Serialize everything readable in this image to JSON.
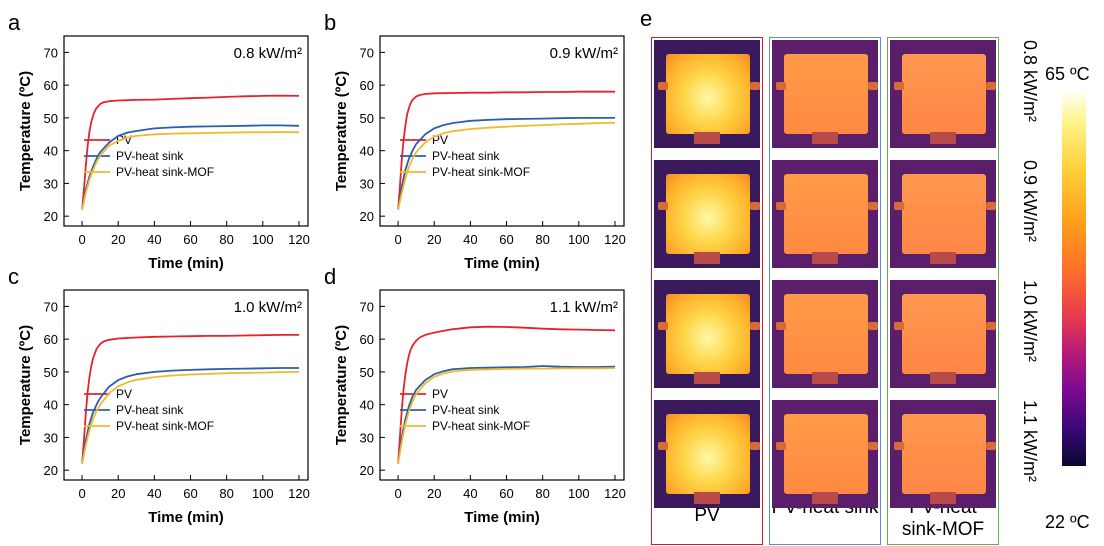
{
  "chart_data": [
    {
      "panel": "a",
      "type": "line",
      "annotation": "0.8 kW/m²",
      "xlabel": "Time (min)",
      "ylabel": "Temperature (ºC)",
      "xlim": [
        -10,
        125
      ],
      "ylim": [
        17,
        75
      ],
      "xticks": [
        0,
        20,
        40,
        60,
        80,
        100,
        120
      ],
      "yticks": [
        20,
        30,
        40,
        50,
        60,
        70
      ],
      "legend_position": "center-left",
      "series": [
        {
          "name": "PV",
          "color": "#e8222a",
          "x": [
            0,
            1,
            2,
            3,
            4,
            5,
            6,
            7,
            8,
            10,
            12,
            15,
            20,
            30,
            40,
            50,
            60,
            70,
            80,
            90,
            100,
            110,
            120
          ],
          "y": [
            22,
            28,
            35,
            41,
            45.5,
            48.5,
            50.5,
            52,
            53,
            54.2,
            54.8,
            55.1,
            55.3,
            55.5,
            55.6,
            55.8,
            56,
            56.2,
            56.4,
            56.6,
            56.7,
            56.8,
            56.7
          ]
        },
        {
          "name": "PV-heat sink",
          "color": "#2b5fa8",
          "x": [
            0,
            2,
            4,
            6,
            8,
            10,
            15,
            20,
            25,
            30,
            40,
            50,
            60,
            70,
            80,
            90,
            100,
            110,
            120
          ],
          "y": [
            22,
            28,
            32,
            35,
            37.5,
            39.5,
            42.5,
            44.5,
            45.5,
            46,
            46.8,
            47.1,
            47.3,
            47.4,
            47.5,
            47.6,
            47.7,
            47.7,
            47.6
          ]
        },
        {
          "name": "PV-heat sink-MOF",
          "color": "#f2b82e",
          "x": [
            0,
            2,
            4,
            6,
            8,
            10,
            15,
            20,
            25,
            30,
            40,
            50,
            60,
            70,
            80,
            90,
            100,
            110,
            120
          ],
          "y": [
            22,
            27,
            31,
            34,
            36.5,
            38.5,
            41.5,
            43,
            44,
            44.5,
            45,
            45.2,
            45.3,
            45.4,
            45.5,
            45.6,
            45.6,
            45.7,
            45.6
          ]
        }
      ]
    },
    {
      "panel": "b",
      "type": "line",
      "annotation": "0.9 kW/m²",
      "xlabel": "Time (min)",
      "ylabel": "Temperature (ºC)",
      "xlim": [
        -10,
        125
      ],
      "ylim": [
        17,
        75
      ],
      "xticks": [
        0,
        20,
        40,
        60,
        80,
        100,
        120
      ],
      "yticks": [
        20,
        30,
        40,
        50,
        60,
        70
      ],
      "legend_position": "center-left",
      "series": [
        {
          "name": "PV",
          "color": "#e8222a",
          "x": [
            0,
            1,
            2,
            3,
            4,
            5,
            6,
            7,
            8,
            10,
            12,
            15,
            20,
            30,
            40,
            50,
            60,
            70,
            80,
            90,
            100,
            110,
            120
          ],
          "y": [
            22,
            29,
            37,
            43,
            47.5,
            51,
            53,
            54.5,
            55.5,
            56.5,
            57,
            57.3,
            57.5,
            57.6,
            57.7,
            57.7,
            57.8,
            57.8,
            57.9,
            57.9,
            58,
            58,
            58
          ]
        },
        {
          "name": "PV-heat sink",
          "color": "#2b5fa8",
          "x": [
            0,
            2,
            4,
            6,
            8,
            10,
            15,
            20,
            25,
            30,
            40,
            50,
            60,
            70,
            80,
            90,
            100,
            110,
            120
          ],
          "y": [
            22,
            29,
            34,
            37.5,
            40,
            42,
            45,
            46.8,
            47.8,
            48.4,
            49.1,
            49.4,
            49.6,
            49.7,
            49.8,
            49.9,
            50,
            50,
            50
          ]
        },
        {
          "name": "PV-heat sink-MOF",
          "color": "#f2b82e",
          "x": [
            0,
            2,
            4,
            6,
            8,
            10,
            15,
            20,
            25,
            30,
            40,
            50,
            60,
            70,
            80,
            90,
            100,
            110,
            120
          ],
          "y": [
            22,
            27,
            31.5,
            35,
            37.5,
            39.5,
            42.5,
            44.3,
            45.3,
            45.9,
            46.6,
            47,
            47.3,
            47.6,
            47.8,
            48,
            48.2,
            48.4,
            48.5
          ]
        }
      ]
    },
    {
      "panel": "c",
      "type": "line",
      "annotation": "1.0 kW/m²",
      "xlabel": "Time (min)",
      "ylabel": "Temperature (ºC)",
      "xlim": [
        -10,
        125
      ],
      "ylim": [
        17,
        75
      ],
      "xticks": [
        0,
        20,
        40,
        60,
        80,
        100,
        120
      ],
      "yticks": [
        20,
        30,
        40,
        50,
        60,
        70
      ],
      "legend_position": "center-left",
      "series": [
        {
          "name": "PV",
          "color": "#e8222a",
          "x": [
            0,
            1,
            2,
            3,
            4,
            5,
            6,
            7,
            8,
            10,
            12,
            15,
            20,
            30,
            40,
            50,
            60,
            70,
            80,
            90,
            100,
            110,
            120
          ],
          "y": [
            22,
            29,
            37,
            43.5,
            48,
            51.5,
            54,
            55.5,
            57,
            58.5,
            59.3,
            59.8,
            60.2,
            60.5,
            60.7,
            60.8,
            60.9,
            61,
            61,
            61.1,
            61.2,
            61.3,
            61.3
          ]
        },
        {
          "name": "PV-heat sink",
          "color": "#2b5fa8",
          "x": [
            0,
            2,
            4,
            6,
            8,
            10,
            15,
            20,
            25,
            30,
            40,
            50,
            60,
            70,
            80,
            90,
            100,
            110,
            120
          ],
          "y": [
            22,
            29,
            34,
            37.5,
            40,
            42,
            45.5,
            47.5,
            48.6,
            49.3,
            50,
            50.4,
            50.6,
            50.8,
            50.9,
            51,
            51.1,
            51.2,
            51.2
          ]
        },
        {
          "name": "PV-heat sink-MOF",
          "color": "#f2b82e",
          "x": [
            0,
            2,
            4,
            6,
            8,
            10,
            15,
            20,
            25,
            30,
            40,
            50,
            60,
            70,
            80,
            90,
            100,
            110,
            120
          ],
          "y": [
            22,
            27.5,
            32,
            35.5,
            38,
            40,
            43.5,
            45.6,
            46.8,
            47.6,
            48.4,
            48.9,
            49.2,
            49.4,
            49.6,
            49.7,
            49.8,
            49.9,
            50
          ]
        }
      ]
    },
    {
      "panel": "d",
      "type": "line",
      "annotation": "1.1 kW/m²",
      "xlabel": "Time (min)",
      "ylabel": "Temperature (ºC)",
      "xlim": [
        -10,
        125
      ],
      "ylim": [
        17,
        75
      ],
      "xticks": [
        0,
        20,
        40,
        60,
        80,
        100,
        120
      ],
      "yticks": [
        20,
        30,
        40,
        50,
        60,
        70
      ],
      "legend_position": "center-left",
      "series": [
        {
          "name": "PV",
          "color": "#e8222a",
          "x": [
            0,
            1,
            2,
            3,
            4,
            5,
            6,
            7,
            8,
            10,
            12,
            15,
            20,
            25,
            30,
            40,
            50,
            60,
            70,
            80,
            90,
            100,
            110,
            120
          ],
          "y": [
            22,
            30,
            38,
            44.5,
            49,
            52.5,
            55,
            56.8,
            58,
            59.5,
            60.5,
            61.3,
            62,
            62.5,
            63,
            63.6,
            63.8,
            63.7,
            63.5,
            63.2,
            63,
            62.9,
            62.8,
            62.7
          ]
        },
        {
          "name": "PV-heat sink",
          "color": "#2b5fa8",
          "x": [
            0,
            2,
            4,
            6,
            8,
            10,
            15,
            20,
            25,
            30,
            40,
            50,
            60,
            70,
            80,
            90,
            100,
            110,
            120
          ],
          "y": [
            22,
            30,
            35.5,
            39.5,
            42.5,
            44.5,
            47.5,
            49.3,
            50.2,
            50.8,
            51.2,
            51.3,
            51.4,
            51.5,
            51.8,
            51.6,
            51.5,
            51.5,
            51.6
          ]
        },
        {
          "name": "PV-heat sink-MOF",
          "color": "#f2b82e",
          "x": [
            0,
            2,
            4,
            6,
            8,
            10,
            15,
            20,
            25,
            30,
            40,
            50,
            60,
            70,
            80,
            90,
            100,
            110,
            120
          ],
          "y": [
            22,
            28.5,
            34,
            38,
            41,
            43.2,
            46.5,
            48.5,
            49.5,
            50.1,
            50.6,
            50.8,
            50.9,
            51,
            51,
            51.1,
            51.1,
            51.1,
            51.2
          ]
        }
      ]
    }
  ],
  "panel_e": {
    "letter": "e",
    "columns": [
      {
        "label": "PV",
        "frame_color": "#c8202a"
      },
      {
        "label": "PV-heat sink",
        "frame_color": "#5b8fd0"
      },
      {
        "label": "PV-heat sink-MOF",
        "frame_color": "#6ab04a"
      }
    ],
    "rows": [
      "0.8 kW/m²",
      "0.9 kW/m²",
      "1.0 kW/m²",
      "1.1 kW/m²"
    ],
    "colorbar": {
      "max_label": "65 ºC",
      "min_label": "22 ºC"
    }
  }
}
